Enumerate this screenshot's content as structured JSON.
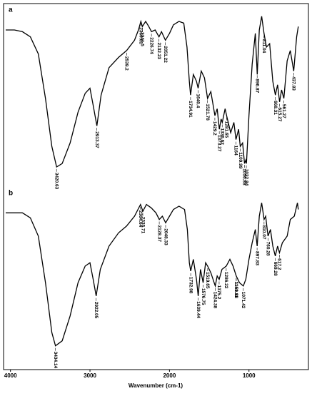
{
  "chart_data": [
    {
      "type": "line",
      "panel_label": "a",
      "color": "#000000",
      "xlim": [
        4060,
        270
      ],
      "ylim": [
        0,
        100
      ],
      "x": [
        4060,
        3950,
        3850,
        3750,
        3650,
        3560,
        3480,
        3420,
        3350,
        3250,
        3150,
        3060,
        3000,
        2960,
        2913,
        2860,
        2760,
        2640,
        2539,
        2440,
        2390,
        2360,
        2341,
        2300,
        2260,
        2226,
        2180,
        2132,
        2100,
        2051,
        2000,
        1950,
        1880,
        1820,
        1780,
        1750,
        1735,
        1700,
        1660,
        1640,
        1600,
        1560,
        1521,
        1480,
        1429,
        1400,
        1373,
        1350,
        1336,
        1300,
        1281,
        1230,
        1190,
        1164,
        1130,
        1110,
        1080,
        1056,
        1040,
        1032,
        1000,
        960,
        920,
        896,
        870,
        840,
        811,
        780,
        740,
        700,
        668,
        640,
        615,
        590,
        561,
        520,
        480,
        437,
        400,
        380
      ],
      "values": [
        90,
        90,
        89,
        86,
        76,
        50,
        22,
        10,
        12,
        24,
        42,
        53,
        56,
        46,
        34,
        52,
        68,
        74,
        78,
        84,
        90,
        95,
        92,
        95,
        92,
        89,
        90,
        86,
        89,
        84,
        88,
        93,
        95,
        94,
        80,
        60,
        52,
        64,
        60,
        56,
        66,
        62,
        50,
        54,
        40,
        44,
        32,
        38,
        36,
        44,
        40,
        30,
        36,
        26,
        32,
        22,
        24,
        12,
        14,
        12,
        40,
        70,
        88,
        64,
        90,
        98,
        88,
        80,
        82,
        60,
        52,
        58,
        48,
        55,
        50,
        72,
        78,
        66,
        86,
        92
      ],
      "peaks": [
        3420.63,
        2913.37,
        2539.2,
        2360.61,
        2341.5,
        2226.74,
        2132.23,
        2051.22,
        1734.91,
        1640.4,
        1521.78,
        1429.2,
        1373.27,
        1336.62,
        1281.65,
        1164,
        1109.99,
        1056.88,
        1032.84,
        896.87,
        811.04,
        668.31,
        615.27,
        561.27,
        437.83
      ]
    },
    {
      "type": "line",
      "panel_label": "b",
      "color": "#000000",
      "xlim": [
        4060,
        270
      ],
      "ylim": [
        0,
        100
      ],
      "xticks": [
        4000,
        3000,
        2000,
        1000
      ],
      "xlabel": "Wavenumber (cm-1)",
      "x": [
        4060,
        3950,
        3850,
        3750,
        3650,
        3560,
        3480,
        3434,
        3350,
        3250,
        3150,
        3060,
        3000,
        2960,
        2922,
        2870,
        2760,
        2640,
        2540,
        2440,
        2364,
        2335,
        2290,
        2230,
        2170,
        2128,
        2090,
        2048,
        2000,
        1950,
        1880,
        1810,
        1775,
        1750,
        1733,
        1700,
        1660,
        1639,
        1610,
        1577,
        1545,
        1520,
        1480,
        1424,
        1400,
        1375,
        1340,
        1286,
        1240,
        1200,
        1160,
        1120,
        1071,
        1040,
        1000,
        960,
        920,
        897,
        870,
        840,
        810,
        790,
        760,
        730,
        700,
        669,
        640,
        617,
        580,
        520,
        480,
        430,
        390,
        380
      ],
      "values": [
        90,
        90,
        90,
        87,
        76,
        48,
        18,
        10,
        13,
        28,
        48,
        58,
        60,
        50,
        40,
        56,
        70,
        78,
        82,
        88,
        95,
        91,
        95,
        93,
        90,
        86,
        88,
        84,
        88,
        92,
        94,
        92,
        80,
        60,
        55,
        62,
        50,
        40,
        56,
        48,
        60,
        58,
        54,
        46,
        52,
        50,
        56,
        58,
        62,
        58,
        52,
        48,
        46,
        50,
        62,
        72,
        80,
        70,
        88,
        96,
        86,
        88,
        76,
        80,
        70,
        64,
        70,
        66,
        72,
        76,
        86,
        88,
        96,
        92
      ],
      "peaks": [
        3434.14,
        2922.05,
        2364.64,
        2335.71,
        2128.37,
        2048.33,
        1732.98,
        1639.44,
        1576.75,
        1519.65,
        1424.38,
        1375.2,
        1286.22,
        1161.11,
        1159.68,
        1071.42,
        897.83,
        810.07,
        760.28,
        669.28,
        617.2
      ]
    }
  ]
}
